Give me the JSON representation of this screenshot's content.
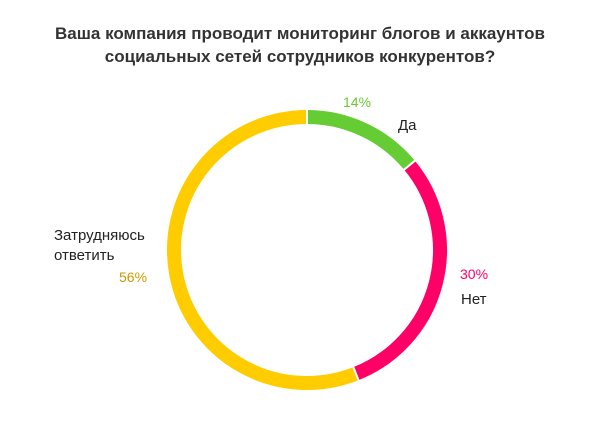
{
  "chart_data": {
    "type": "pie",
    "title_lines": [
      "Ваша компания проводит мониторинг блогов и аккаунтов",
      "социальных сетей сотрудников конкурентов?"
    ],
    "slices": [
      {
        "label": "Да",
        "value": 14,
        "value_label": "14%",
        "color": "#66cc33"
      },
      {
        "label": "Нет",
        "value": 30,
        "value_label": "30%",
        "color": "#ff0066"
      },
      {
        "label_lines": [
          "Затрудняюсь",
          "ответить"
        ],
        "value": 56,
        "value_label": "56%",
        "color": "#ffcc00"
      }
    ],
    "style": "donut",
    "legend": "none"
  }
}
